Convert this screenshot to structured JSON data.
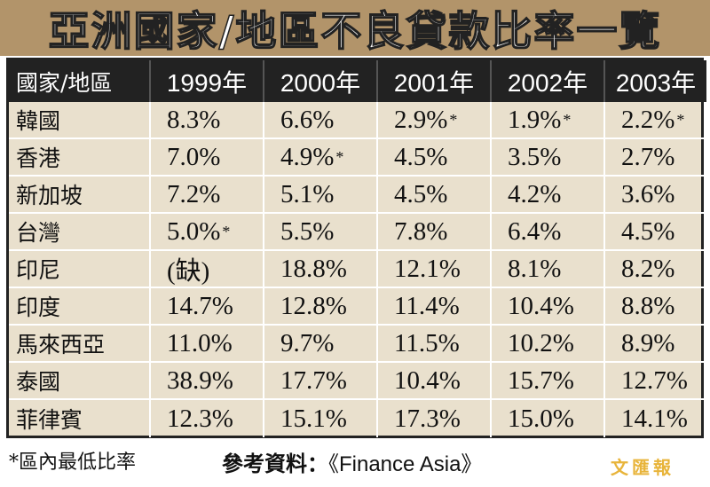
{
  "title": "亞洲國家/地區不良貸款比率一覽",
  "chart_data": {
    "type": "table",
    "header": [
      "國家/地區",
      "1999年",
      "2000年",
      "2001年",
      "2002年",
      "2003年"
    ],
    "rows": [
      {
        "label": "韓國",
        "values": [
          "8.3%",
          "6.6%",
          "2.9%",
          "1.9%",
          "2.2%"
        ],
        "stars": [
          false,
          false,
          true,
          true,
          true
        ]
      },
      {
        "label": "香港",
        "values": [
          "7.0%",
          "4.9%",
          "4.5%",
          "3.5%",
          "2.7%"
        ],
        "stars": [
          false,
          true,
          false,
          false,
          false
        ]
      },
      {
        "label": "新加坡",
        "values": [
          "7.2%",
          "5.1%",
          "4.5%",
          "4.2%",
          "3.6%"
        ],
        "stars": [
          false,
          false,
          false,
          false,
          false
        ]
      },
      {
        "label": "台灣",
        "values": [
          "5.0%",
          "5.5%",
          "7.8%",
          "6.4%",
          "4.5%"
        ],
        "stars": [
          true,
          false,
          false,
          false,
          false
        ]
      },
      {
        "label": "印尼",
        "values": [
          "(缺)",
          "18.8%",
          "12.1%",
          "8.1%",
          "8.2%"
        ],
        "stars": [
          false,
          false,
          false,
          false,
          false
        ]
      },
      {
        "label": "印度",
        "values": [
          "14.7%",
          "12.8%",
          "11.4%",
          "10.4%",
          "8.8%"
        ],
        "stars": [
          false,
          false,
          false,
          false,
          false
        ]
      },
      {
        "label": "馬來西亞",
        "values": [
          "11.0%",
          "9.7%",
          "11.5%",
          "10.2%",
          "8.9%"
        ],
        "stars": [
          false,
          false,
          false,
          false,
          false
        ]
      },
      {
        "label": "泰國",
        "values": [
          "38.9%",
          "17.7%",
          "10.4%",
          "15.7%",
          "12.7%"
        ],
        "stars": [
          false,
          false,
          false,
          false,
          false
        ]
      },
      {
        "label": "菲律賓",
        "values": [
          "12.3%",
          "15.1%",
          "17.3%",
          "15.0%",
          "14.1%"
        ],
        "stars": [
          false,
          false,
          false,
          false,
          false
        ]
      }
    ]
  },
  "footer": {
    "note": "*區內最低比率",
    "source_label": "參考資料：",
    "source_name": "《Finance Asia》",
    "logo": "文匯報"
  },
  "colors": {
    "title_bg": "#b2946a",
    "header_bg": "#222222",
    "table_bg": "#e9e0cd",
    "logo": "#e8b43a"
  }
}
